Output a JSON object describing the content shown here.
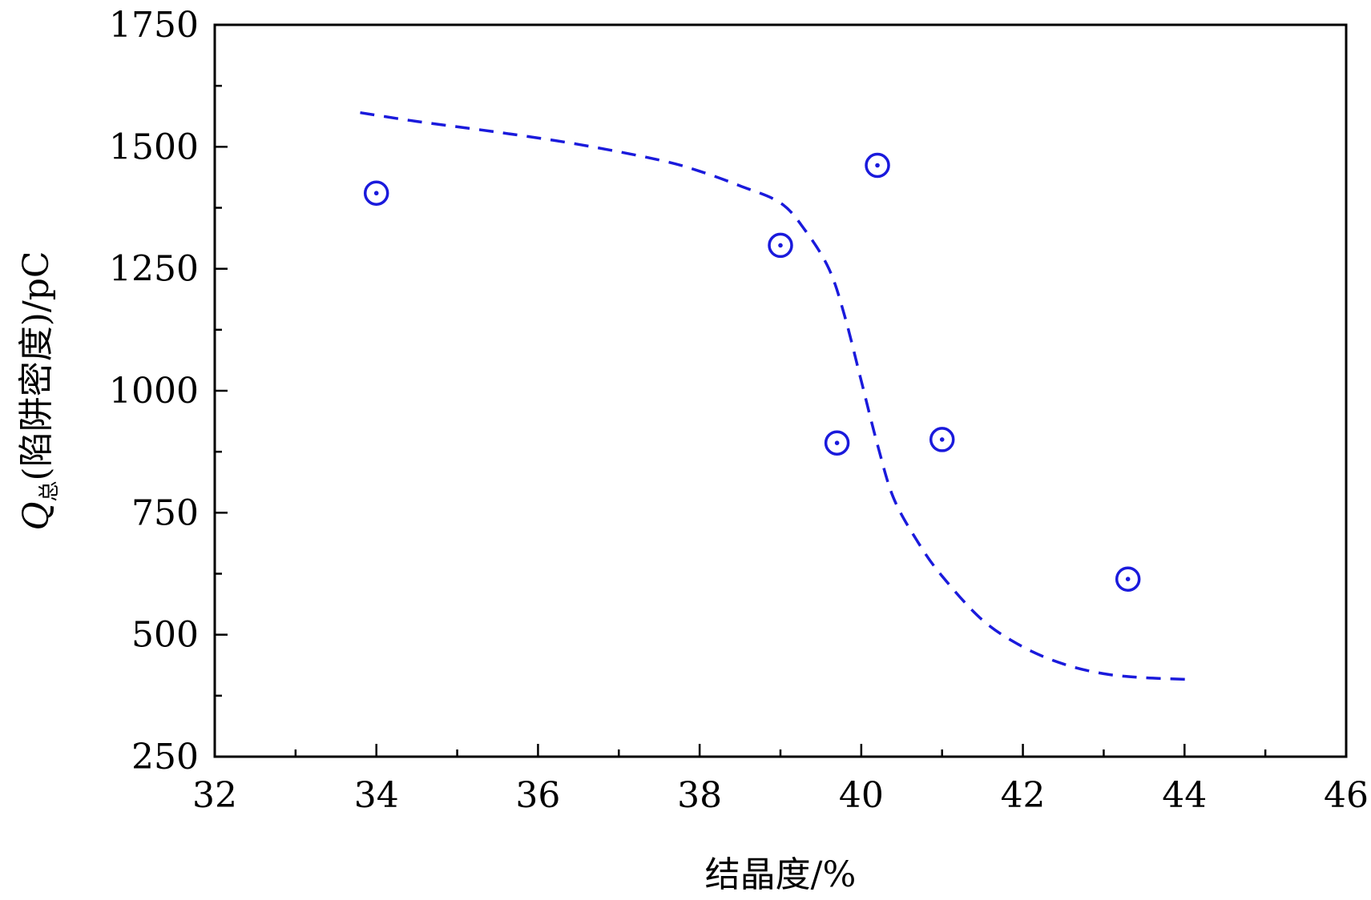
{
  "chart_data": {
    "type": "scatter",
    "xlabel": "结晶度/%",
    "ylabel": {
      "symbol": "Q",
      "subscript": "总",
      "text": "(陷阱密度)/pC"
    },
    "xlim": [
      32,
      46
    ],
    "ylim": [
      250,
      1750
    ],
    "xticks": [
      32,
      34,
      36,
      38,
      40,
      42,
      44,
      46
    ],
    "yticks": [
      250,
      500,
      750,
      1000,
      1250,
      1500,
      1750
    ],
    "xticks_minor": [
      33,
      35,
      37,
      39,
      41,
      43,
      45
    ],
    "yticks_minor": [
      375,
      625,
      875,
      1125,
      1375,
      1625
    ],
    "grid": false,
    "series": [
      {
        "kind": "scatter",
        "marker": "circle-dot",
        "color": "#1a1adc",
        "x": [
          34.0,
          39.0,
          39.7,
          40.2,
          41.0,
          43.3
        ],
        "y": [
          1405,
          1298,
          893,
          1462,
          900,
          614
        ]
      },
      {
        "kind": "line",
        "style": "dashed",
        "color": "#1a1adc",
        "x": [
          33.8,
          34.5,
          35.5,
          36.5,
          37.5,
          38.0,
          38.5,
          39.0,
          39.3,
          39.6,
          39.8,
          40.0,
          40.2,
          40.4,
          40.7,
          41.0,
          41.5,
          42.0,
          42.5,
          43.0,
          43.5,
          44.1
        ],
        "y": [
          1570,
          1552,
          1530,
          1505,
          1473,
          1450,
          1420,
          1385,
          1330,
          1250,
          1150,
          1020,
          890,
          780,
          690,
          620,
          530,
          475,
          440,
          420,
          412,
          408
        ]
      }
    ]
  }
}
